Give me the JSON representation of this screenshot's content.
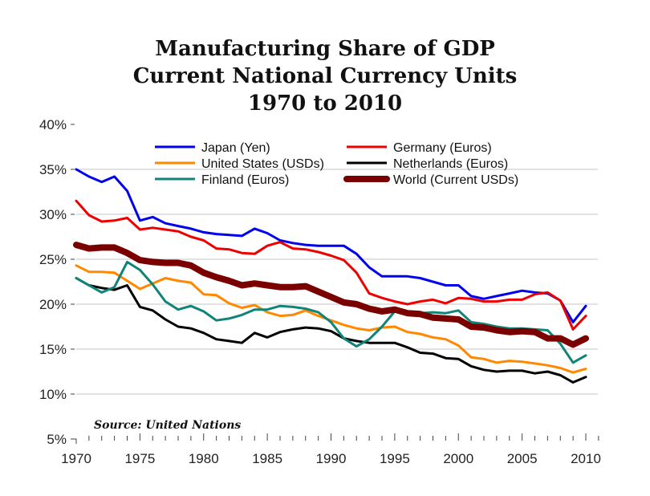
{
  "chart_data": {
    "type": "line",
    "title": [
      "Manufacturing Share of GDP",
      "Current National Currency Units",
      "1970 to 2010"
    ],
    "xlabel": "",
    "ylabel": "",
    "source": "Source: United Nations",
    "xlim": [
      1970,
      2010
    ],
    "ylim": [
      5,
      40
    ],
    "x_ticks": [
      1970,
      1975,
      1980,
      1985,
      1990,
      1995,
      2000,
      2005,
      2010
    ],
    "x_tick_labels": [
      "1970",
      "1975",
      "1980",
      "1985",
      "1990",
      "1995",
      "2000",
      "2005",
      "2010"
    ],
    "y_ticks": [
      5,
      10,
      15,
      20,
      25,
      30,
      35,
      40
    ],
    "y_tick_labels": [
      "5%",
      "10%",
      "15%",
      "20%",
      "25%",
      "30%",
      "35%",
      "40%"
    ],
    "gridlines_y": [
      10,
      15,
      20,
      25,
      30,
      35
    ],
    "grid": true,
    "legend_position": "top",
    "x": [
      1970,
      1971,
      1972,
      1973,
      1974,
      1975,
      1976,
      1977,
      1978,
      1979,
      1980,
      1981,
      1982,
      1983,
      1984,
      1985,
      1986,
      1987,
      1988,
      1989,
      1990,
      1991,
      1992,
      1993,
      1994,
      1995,
      1996,
      1997,
      1998,
      1999,
      2000,
      2001,
      2002,
      2003,
      2004,
      2005,
      2006,
      2007,
      2008,
      2009,
      2010
    ],
    "series": [
      {
        "name": "Japan (Yen)",
        "color": "#0000ee",
        "weight": "normal",
        "values": [
          35.0,
          34.2,
          33.6,
          34.2,
          32.6,
          29.3,
          29.7,
          29.0,
          28.7,
          28.4,
          28.0,
          27.8,
          27.7,
          27.6,
          28.4,
          27.9,
          27.1,
          26.8,
          26.6,
          26.5,
          26.5,
          26.5,
          25.6,
          24.1,
          23.1,
          23.1,
          23.1,
          22.9,
          22.5,
          22.1,
          22.1,
          20.9,
          20.6,
          20.9,
          21.2,
          21.5,
          21.3,
          21.2,
          20.4,
          18.0,
          19.8
        ]
      },
      {
        "name": "Germany (Euros)",
        "color": "#ee0000",
        "weight": "normal",
        "values": [
          31.5,
          29.9,
          29.2,
          29.3,
          29.6,
          28.3,
          28.5,
          28.3,
          28.1,
          27.5,
          27.1,
          26.2,
          26.1,
          25.7,
          25.6,
          26.5,
          26.9,
          26.2,
          26.1,
          25.8,
          25.4,
          24.9,
          23.5,
          21.2,
          20.7,
          20.3,
          20.0,
          20.3,
          20.5,
          20.1,
          20.7,
          20.6,
          20.3,
          20.3,
          20.5,
          20.5,
          21.1,
          21.3,
          20.4,
          17.2,
          18.7
        ]
      },
      {
        "name": "United States (USDs)",
        "color": "#ff8800",
        "weight": "normal",
        "values": [
          24.3,
          23.6,
          23.6,
          23.5,
          22.6,
          21.7,
          22.3,
          22.9,
          22.6,
          22.4,
          21.1,
          21.0,
          20.1,
          19.6,
          19.9,
          19.1,
          18.7,
          18.8,
          19.3,
          18.7,
          18.2,
          17.7,
          17.3,
          17.1,
          17.4,
          17.5,
          16.9,
          16.7,
          16.3,
          16.1,
          15.4,
          14.1,
          13.9,
          13.5,
          13.7,
          13.6,
          13.4,
          13.2,
          12.9,
          12.4,
          12.8
        ]
      },
      {
        "name": "Netherlands (Euros)",
        "color": "#000000",
        "weight": "normal",
        "values": [
          22.9,
          22.1,
          21.8,
          21.6,
          22.1,
          19.7,
          19.3,
          18.3,
          17.5,
          17.3,
          16.8,
          16.1,
          15.9,
          15.7,
          16.8,
          16.3,
          16.9,
          17.2,
          17.4,
          17.3,
          17.0,
          16.2,
          15.9,
          15.7,
          15.7,
          15.7,
          15.2,
          14.6,
          14.5,
          14.0,
          13.9,
          13.1,
          12.7,
          12.5,
          12.6,
          12.6,
          12.3,
          12.5,
          12.1,
          11.3,
          11.9
        ]
      },
      {
        "name": "Finland (Euros)",
        "color": "#108478",
        "weight": "normal",
        "values": [
          22.9,
          22.1,
          21.3,
          21.9,
          24.7,
          23.8,
          22.2,
          20.3,
          19.4,
          19.8,
          19.2,
          18.2,
          18.4,
          18.8,
          19.4,
          19.4,
          19.8,
          19.7,
          19.5,
          19.1,
          18.0,
          16.2,
          15.3,
          16.1,
          17.5,
          19.2,
          19.0,
          19.0,
          19.1,
          19.0,
          19.3,
          18.0,
          17.8,
          17.5,
          17.3,
          17.3,
          17.2,
          17.1,
          15.6,
          13.5,
          14.3
        ]
      },
      {
        "name": "World (Current USDs)",
        "color": "#7a0000",
        "weight": "bold",
        "values": [
          26.6,
          26.2,
          26.3,
          26.3,
          25.7,
          24.9,
          24.7,
          24.6,
          24.6,
          24.3,
          23.5,
          23.0,
          22.6,
          22.1,
          22.3,
          22.1,
          21.9,
          21.9,
          22.0,
          21.4,
          20.8,
          20.2,
          20.0,
          19.5,
          19.2,
          19.4,
          19.0,
          18.9,
          18.5,
          18.4,
          18.3,
          17.5,
          17.4,
          17.1,
          16.9,
          17.0,
          16.9,
          16.2,
          16.2,
          15.5,
          16.2
        ]
      }
    ],
    "legend_order": [
      0,
      1,
      2,
      3,
      4,
      5
    ]
  }
}
